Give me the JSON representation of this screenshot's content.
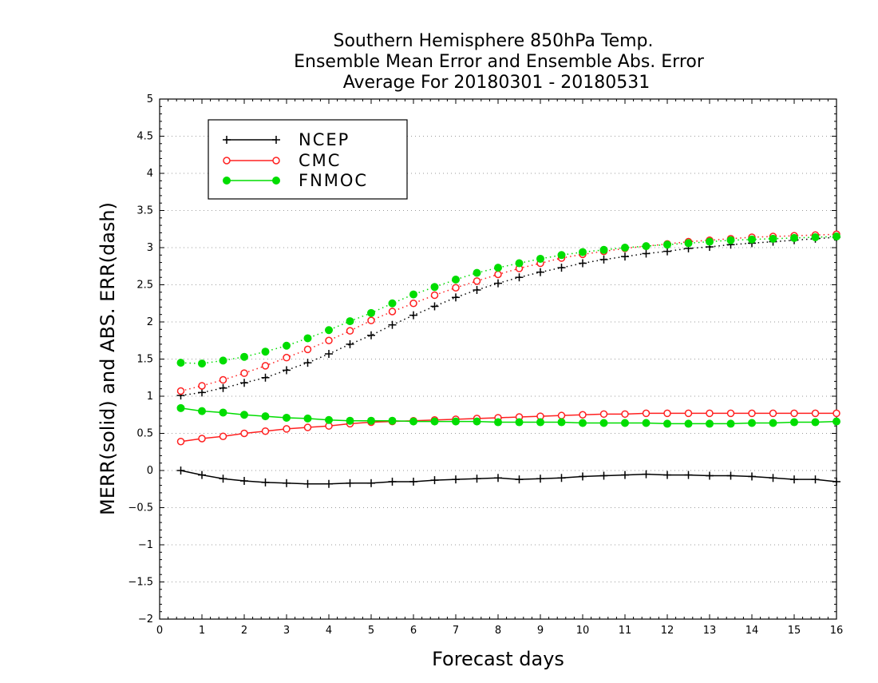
{
  "chart_data": {
    "type": "line",
    "title": [
      "Southern Hemisphere 850hPa Temp.",
      "Ensemble Mean Error and Ensemble Abs. Error",
      "Average For 20180301 - 20180531"
    ],
    "xlabel": "Forecast days",
    "ylabel": "MERR(solid) and ABS. ERR(dash)",
    "xlim": [
      0,
      16
    ],
    "ylim": [
      -2,
      5
    ],
    "xticks": [
      0,
      1,
      2,
      3,
      4,
      5,
      6,
      7,
      8,
      9,
      10,
      11,
      12,
      13,
      14,
      15,
      16
    ],
    "yticks": [
      -2,
      -1.5,
      -1,
      -0.5,
      0,
      0.5,
      1,
      1.5,
      2,
      2.5,
      3,
      3.5,
      4,
      4.5,
      5
    ],
    "ytick_labels": [
      "−2",
      "−1.5",
      "−1",
      "−0.5",
      "0",
      "0.5",
      "1",
      "1.5",
      "2",
      "2.5",
      "3",
      "3.5",
      "4",
      "4.5",
      "5"
    ],
    "grid": "horizontal dotted",
    "legend_position": "top-left",
    "x": [
      0.5,
      1,
      1.5,
      2,
      2.5,
      3,
      3.5,
      4,
      4.5,
      5,
      5.5,
      6,
      6.5,
      7,
      7.5,
      8,
      8.5,
      9,
      9.5,
      10,
      10.5,
      11,
      11.5,
      12,
      12.5,
      13,
      13.5,
      14,
      14.5,
      15,
      15.5,
      16
    ],
    "series": [
      {
        "name": "NCEP",
        "color": "#000000",
        "marker": "plus",
        "merr": [
          0.0,
          -0.06,
          -0.11,
          -0.14,
          -0.16,
          -0.17,
          -0.18,
          -0.18,
          -0.17,
          -0.17,
          -0.15,
          -0.15,
          -0.13,
          -0.12,
          -0.11,
          -0.1,
          -0.12,
          -0.11,
          -0.1,
          -0.08,
          -0.07,
          -0.06,
          -0.05,
          -0.06,
          -0.06,
          -0.07,
          -0.07,
          -0.08,
          -0.1,
          -0.12,
          -0.12,
          -0.15
        ],
        "abs_err": [
          1.01,
          1.05,
          1.11,
          1.18,
          1.25,
          1.35,
          1.45,
          1.57,
          1.7,
          1.82,
          1.96,
          2.09,
          2.21,
          2.33,
          2.43,
          2.52,
          2.6,
          2.67,
          2.73,
          2.79,
          2.84,
          2.88,
          2.92,
          2.95,
          2.99,
          3.01,
          3.04,
          3.06,
          3.08,
          3.1,
          3.12,
          3.14
        ]
      },
      {
        "name": "CMC",
        "color": "#ff2020",
        "marker": "open-circle",
        "merr": [
          0.39,
          0.43,
          0.46,
          0.5,
          0.53,
          0.56,
          0.58,
          0.6,
          0.63,
          0.65,
          0.66,
          0.67,
          0.68,
          0.69,
          0.7,
          0.71,
          0.72,
          0.73,
          0.74,
          0.75,
          0.76,
          0.76,
          0.77,
          0.77,
          0.77,
          0.77,
          0.77,
          0.77,
          0.77,
          0.77,
          0.77,
          0.77
        ],
        "abs_err": [
          1.07,
          1.14,
          1.22,
          1.31,
          1.41,
          1.52,
          1.63,
          1.75,
          1.88,
          2.02,
          2.14,
          2.25,
          2.36,
          2.46,
          2.55,
          2.64,
          2.72,
          2.79,
          2.86,
          2.91,
          2.95,
          2.99,
          3.02,
          3.05,
          3.08,
          3.1,
          3.12,
          3.14,
          3.15,
          3.16,
          3.17,
          3.18
        ]
      },
      {
        "name": "FNMOC",
        "color": "#00dd00",
        "marker": "filled-circle",
        "merr": [
          0.84,
          0.8,
          0.78,
          0.75,
          0.73,
          0.71,
          0.7,
          0.68,
          0.67,
          0.67,
          0.67,
          0.66,
          0.66,
          0.66,
          0.66,
          0.65,
          0.65,
          0.65,
          0.65,
          0.64,
          0.64,
          0.64,
          0.64,
          0.63,
          0.63,
          0.63,
          0.63,
          0.64,
          0.64,
          0.65,
          0.65,
          0.66
        ],
        "abs_err": [
          1.45,
          1.44,
          1.48,
          1.53,
          1.6,
          1.68,
          1.78,
          1.89,
          2.01,
          2.12,
          2.25,
          2.37,
          2.47,
          2.57,
          2.66,
          2.73,
          2.79,
          2.85,
          2.9,
          2.94,
          2.97,
          3.0,
          3.02,
          3.04,
          3.06,
          3.08,
          3.1,
          3.11,
          3.12,
          3.13,
          3.14,
          3.15
        ]
      }
    ]
  }
}
